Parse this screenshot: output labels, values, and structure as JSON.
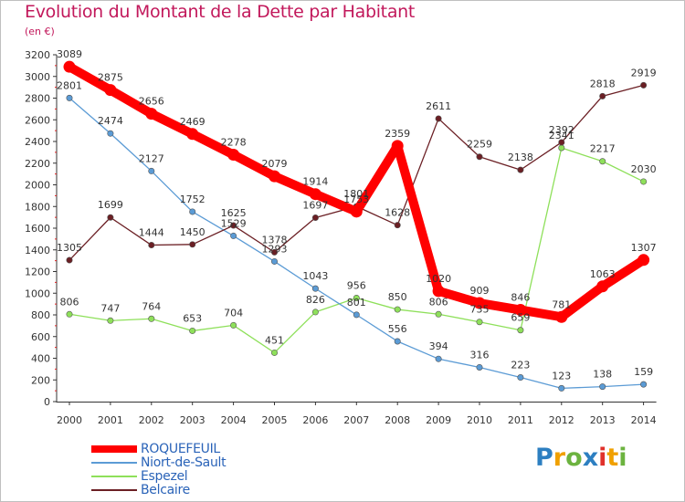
{
  "title": "Evolution du Montant de la Dette par Habitant",
  "subtitle": "(en €)",
  "logo": {
    "p": "P",
    "r": "r",
    "o": "o",
    "x": "x",
    "i": "i",
    "t": "t",
    "i2": "i"
  },
  "chart_data": {
    "type": "line",
    "title": "Evolution du Montant de la Dette par Habitant",
    "subtitle": "(en €)",
    "x": [
      "2000",
      "2001",
      "2002",
      "2003",
      "2004",
      "2005",
      "2006",
      "2007",
      "2008",
      "2009",
      "2010",
      "2011",
      "2012",
      "2013",
      "2014"
    ],
    "ylim": [
      0,
      3200
    ],
    "yticks": [
      0,
      200,
      400,
      600,
      800,
      1000,
      1200,
      1400,
      1600,
      1800,
      2000,
      2200,
      2400,
      2600,
      2800,
      3000,
      3200
    ],
    "grid": false,
    "legend": "bottom-left",
    "series": [
      {
        "name": "ROQUEFEUIL",
        "color": "#ff0000",
        "thick": true,
        "values": [
          3089,
          2875,
          2656,
          2469,
          2278,
          2079,
          1914,
          1753,
          2359,
          1020,
          909,
          846,
          781,
          1063,
          1307
        ]
      },
      {
        "name": "Niort-de-Sault",
        "color": "#5b9bd5",
        "thick": false,
        "values": [
          2801,
          2474,
          2127,
          1752,
          1529,
          1293,
          1043,
          801,
          556,
          394,
          316,
          223,
          123,
          138,
          159
        ]
      },
      {
        "name": "Espezel",
        "color": "#8ee05a",
        "thick": false,
        "values": [
          806,
          747,
          764,
          653,
          704,
          451,
          826,
          956,
          850,
          806,
          735,
          659,
          2341,
          2217,
          2030
        ],
        "labels": [
          "806",
          "747",
          "764",
          "653",
          "704",
          "451",
          "826",
          "956",
          "850",
          "806",
          "735",
          "659",
          "2341",
          "2217",
          "2030"
        ]
      },
      {
        "name": "Belcaire",
        "color": "#6b1f24",
        "thick": false,
        "values": [
          1305,
          1699,
          1444,
          1450,
          1625,
          1378,
          1697,
          1801,
          1628,
          2611,
          2259,
          2138,
          2392,
          2818,
          2919
        ]
      }
    ]
  }
}
